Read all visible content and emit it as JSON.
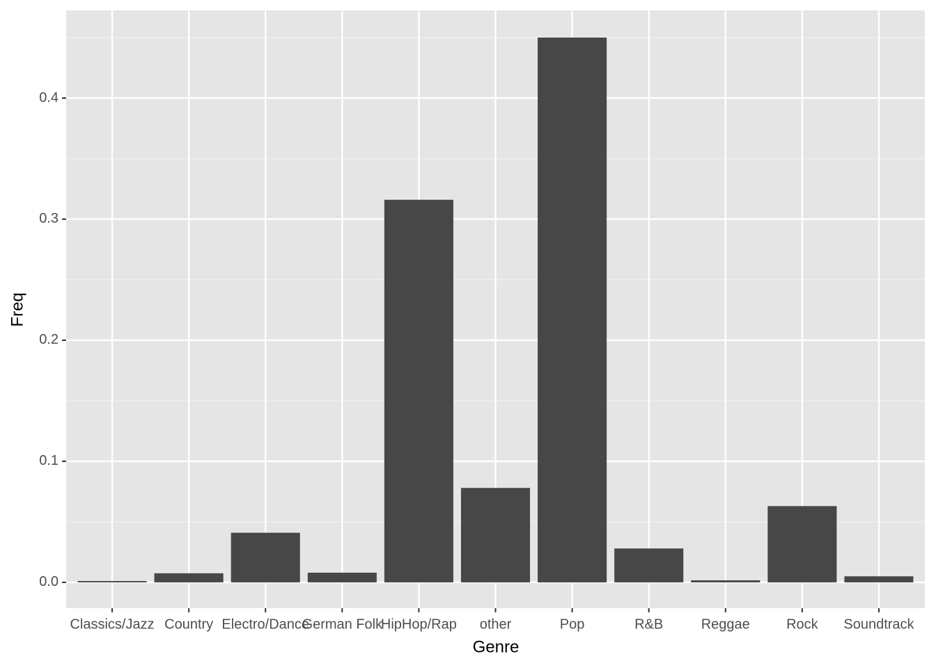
{
  "chart_data": {
    "type": "bar",
    "x_label": "Genre",
    "y_label": "Freq",
    "categories": [
      "Classics/Jazz",
      "Country",
      "Electro/Dance",
      "German Folk",
      "HipHop/Rap",
      "other",
      "Pop",
      "R&B",
      "Reggae",
      "Rock",
      "Soundtrack"
    ],
    "values": [
      0.0011,
      0.0075,
      0.041,
      0.008,
      0.316,
      0.078,
      0.45,
      0.028,
      0.0017,
      0.063,
      0.005
    ],
    "color": "#474747",
    "ylim": [
      -0.0213,
      0.4724
    ],
    "yticks": [
      {
        "value": 0,
        "label": "0.0"
      },
      0.1,
      0.2,
      0.3,
      0.4
    ],
    "y_minor_ticks": [
      0.05,
      0.15,
      0.25,
      0.35,
      0.45
    ],
    "grid": true
  }
}
